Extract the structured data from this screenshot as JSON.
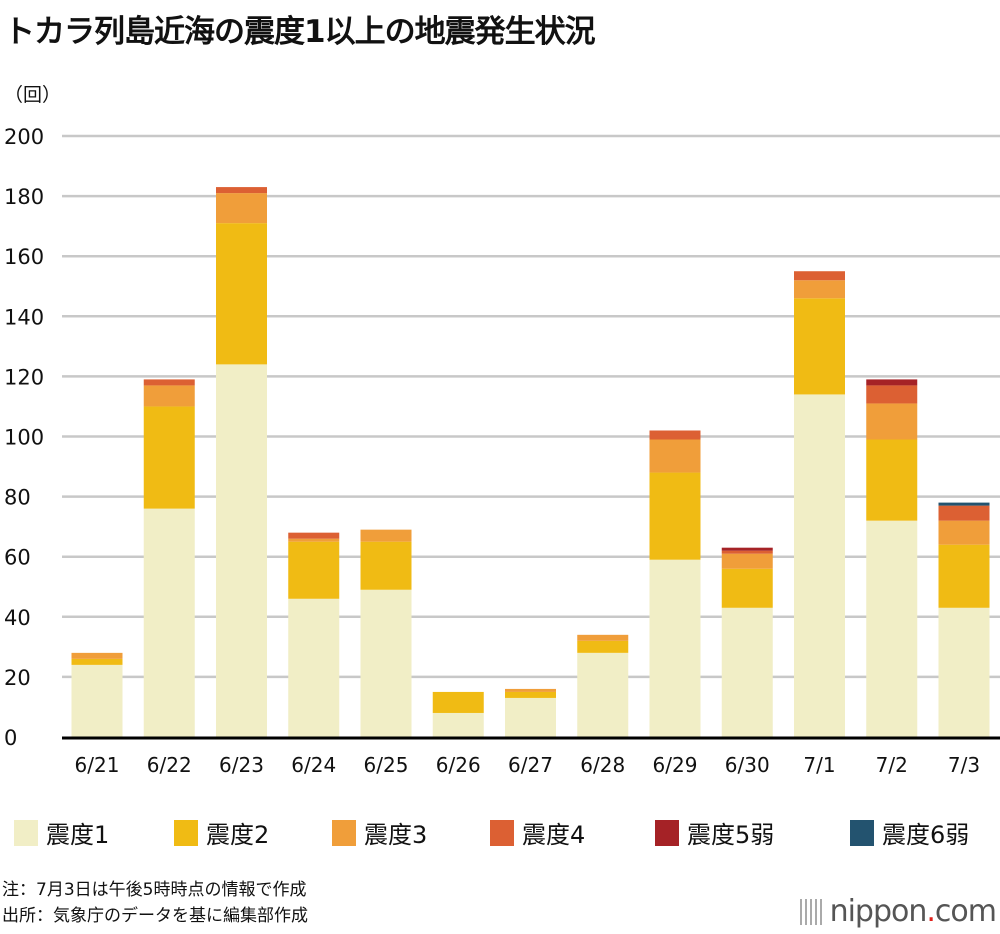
{
  "title": "トカラ列島近海の震度1以上の地震発生状況",
  "unit": "（回）",
  "chart_data": {
    "type": "bar",
    "stacked": true,
    "title": "トカラ列島近海の震度1以上の地震発生状況",
    "ylabel": "（回）",
    "ylim": [
      0,
      200
    ],
    "yticks": [
      0,
      20,
      40,
      60,
      80,
      100,
      120,
      140,
      160,
      180,
      200
    ],
    "grid": true,
    "legend_position": "bottom",
    "categories": [
      "6/21",
      "6/22",
      "6/23",
      "6/24",
      "6/25",
      "6/26",
      "6/27",
      "6/28",
      "6/29",
      "6/30",
      "7/1",
      "7/2",
      "7/3"
    ],
    "series": [
      {
        "name": "震度1",
        "color": "#f1eec6",
        "values": [
          24,
          76,
          124,
          46,
          49,
          8,
          13,
          28,
          59,
          43,
          114,
          72,
          43
        ]
      },
      {
        "name": "震度2",
        "color": "#f0bb14",
        "values": [
          2,
          34,
          47,
          19,
          16,
          7,
          2,
          4,
          29,
          13,
          32,
          27,
          21
        ]
      },
      {
        "name": "震度3",
        "color": "#f09e3a",
        "values": [
          2,
          7,
          10,
          1,
          4,
          0,
          1,
          2,
          11,
          5,
          6,
          12,
          8
        ]
      },
      {
        "name": "震度4",
        "color": "#dc6033",
        "values": [
          0,
          2,
          2,
          2,
          0,
          0,
          0,
          0,
          3,
          1,
          3,
          6,
          5
        ]
      },
      {
        "name": "震度5弱",
        "color": "#a52226",
        "values": [
          0,
          0,
          0,
          0,
          0,
          0,
          0,
          0,
          0,
          1,
          0,
          2,
          0
        ]
      },
      {
        "name": "震度6弱",
        "color": "#23536f",
        "values": [
          0,
          0,
          0,
          0,
          0,
          0,
          0,
          0,
          0,
          0,
          0,
          0,
          1
        ]
      }
    ]
  },
  "notes": {
    "note": "注：7月3日は午後5時時点の情報で作成",
    "source": "出所：気象庁のデータを基に編集部作成"
  },
  "logo": {
    "name": "nippon",
    "dot": ".",
    "suffix": "com"
  }
}
